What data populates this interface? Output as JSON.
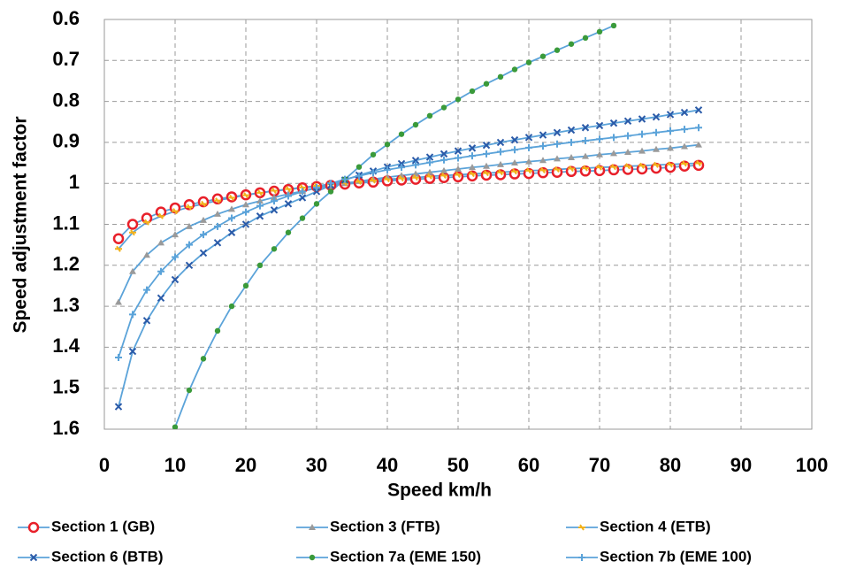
{
  "chart_data": {
    "type": "line",
    "x_label": "Speed km/h",
    "y_label": "Speed  adjustment factor",
    "xlim": [
      0,
      100
    ],
    "xticks": [
      0,
      10,
      20,
      30,
      40,
      50,
      60,
      70,
      80,
      90,
      100
    ],
    "ylim": [
      0.6,
      1.6
    ],
    "yticks": [
      0.6,
      0.7,
      0.8,
      0.9,
      1,
      1.1,
      1.2,
      1.3,
      1.4,
      1.5,
      1.6
    ],
    "y_inverted": true,
    "grid": true,
    "line_color": "#5ba3d9",
    "legend": "bottom",
    "x": [
      2,
      4,
      6,
      8,
      10,
      12,
      14,
      16,
      18,
      20,
      22,
      24,
      26,
      28,
      30,
      32,
      34,
      36,
      38,
      40,
      42,
      44,
      46,
      48,
      50,
      52,
      54,
      56,
      58,
      60,
      62,
      64,
      66,
      68,
      70,
      72,
      74,
      76,
      78,
      80,
      82,
      84
    ],
    "series": [
      {
        "name": "Section 1 (GB)",
        "color": "#e8202a",
        "marker": "circle",
        "values": [
          1.135,
          1.1,
          1.085,
          1.07,
          1.06,
          1.052,
          1.045,
          1.038,
          1.033,
          1.028,
          1.023,
          1.019,
          1.015,
          1.011,
          1.008,
          1.005,
          1.002,
          0.999,
          0.997,
          0.994,
          0.992,
          0.99,
          0.988,
          0.986,
          0.984,
          0.982,
          0.98,
          0.979,
          0.977,
          0.976,
          0.974,
          0.973,
          0.971,
          0.97,
          0.969,
          0.967,
          0.966,
          0.965,
          0.963,
          0.961,
          0.958,
          0.956
        ]
      },
      {
        "name": "Section 3 (FTB)",
        "color": "#9a9a9a",
        "marker": "triangle",
        "values": [
          1.29,
          1.215,
          1.175,
          1.145,
          1.125,
          1.105,
          1.09,
          1.075,
          1.063,
          1.052,
          1.043,
          1.034,
          1.026,
          1.019,
          1.012,
          1.006,
          1.0,
          0.995,
          0.99,
          0.985,
          0.981,
          0.977,
          0.973,
          0.969,
          0.965,
          0.961,
          0.958,
          0.954,
          0.95,
          0.947,
          0.944,
          0.94,
          0.937,
          0.934,
          0.93,
          0.927,
          0.924,
          0.921,
          0.917,
          0.914,
          0.91,
          0.906
        ]
      },
      {
        "name": "Section 4 (ETB)",
        "color": "#f2b21c",
        "marker": "dash",
        "values": [
          1.16,
          1.12,
          1.095,
          1.08,
          1.068,
          1.058,
          1.05,
          1.042,
          1.035,
          1.029,
          1.023,
          1.018,
          1.014,
          1.01,
          1.006,
          1.002,
          0.999,
          0.996,
          0.993,
          0.99,
          0.988,
          0.986,
          0.983,
          0.981,
          0.979,
          0.977,
          0.975,
          0.973,
          0.971,
          0.969,
          0.968,
          0.966,
          0.964,
          0.963,
          0.961,
          0.96,
          0.958,
          0.957,
          0.955,
          0.954,
          0.952,
          0.951
        ]
      },
      {
        "name": "Section 6 (BTB)",
        "color": "#2a5aa8",
        "marker": "cross",
        "values": [
          1.545,
          1.41,
          1.335,
          1.28,
          1.235,
          1.2,
          1.17,
          1.145,
          1.12,
          1.1,
          1.08,
          1.065,
          1.05,
          1.035,
          1.02,
          1.005,
          0.992,
          0.98,
          0.97,
          0.96,
          0.952,
          0.944,
          0.936,
          0.928,
          0.921,
          0.914,
          0.907,
          0.9,
          0.894,
          0.888,
          0.882,
          0.876,
          0.87,
          0.864,
          0.859,
          0.853,
          0.848,
          0.843,
          0.838,
          0.832,
          0.827,
          0.821
        ]
      },
      {
        "name": "Section 7a (EME 150)",
        "color": "#3a9a3a",
        "marker": "dot",
        "values": [
          null,
          null,
          null,
          null,
          1.595,
          1.505,
          1.428,
          1.36,
          1.3,
          1.25,
          1.2,
          1.16,
          1.12,
          1.085,
          1.05,
          1.02,
          0.99,
          0.96,
          0.93,
          0.905,
          0.88,
          0.857,
          0.835,
          0.815,
          0.795,
          0.775,
          0.757,
          0.74,
          0.722,
          0.705,
          0.69,
          0.675,
          0.66,
          0.645,
          0.63,
          0.615,
          null,
          null,
          null,
          null,
          null,
          null
        ]
      },
      {
        "name": "Section 7b  (EME 100)",
        "color": "#5ba3d9",
        "marker": "plus",
        "values": [
          1.425,
          1.32,
          1.26,
          1.215,
          1.18,
          1.15,
          1.125,
          1.105,
          1.085,
          1.07,
          1.055,
          1.043,
          1.031,
          1.02,
          1.01,
          1.0,
          0.99,
          0.982,
          0.974,
          0.967,
          0.961,
          0.955,
          0.949,
          0.943,
          0.938,
          0.933,
          0.928,
          0.923,
          0.918,
          0.913,
          0.909,
          0.904,
          0.9,
          0.896,
          0.892,
          0.888,
          0.884,
          0.88,
          0.876,
          0.872,
          0.868,
          0.864
        ]
      }
    ]
  }
}
